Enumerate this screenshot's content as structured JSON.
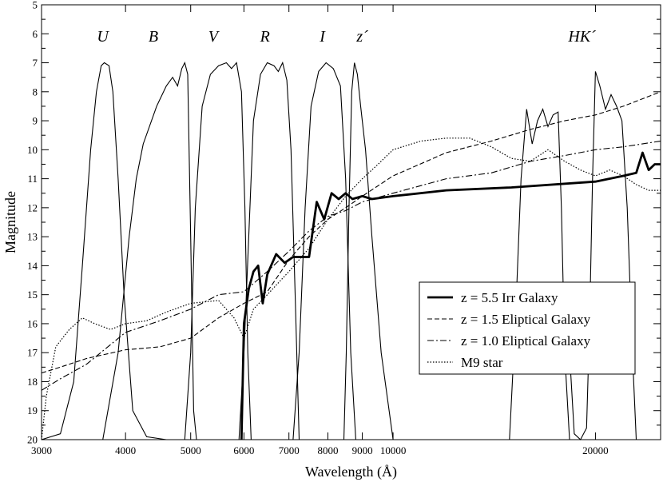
{
  "chart_data": {
    "type": "line",
    "title": "",
    "xlabel": "Wavelength (Å)",
    "ylabel": "Magnitude",
    "x_scale": "log",
    "xlim": [
      3000,
      25000
    ],
    "ylim": [
      20,
      5
    ],
    "y_inverted": true,
    "x_ticks": [
      {
        "value": 3000,
        "label": "3000"
      },
      {
        "value": 4000,
        "label": "4000"
      },
      {
        "value": 5000,
        "label": "5000"
      },
      {
        "value": 6000,
        "label": "6000"
      },
      {
        "value": 7000,
        "label": "7000"
      },
      {
        "value": 8000,
        "label": "8000"
      },
      {
        "value": 9000,
        "label": "9000"
      },
      {
        "value": 10000,
        "label": "10000"
      },
      {
        "value": 20000,
        "label": "20000"
      }
    ],
    "y_ticks": [
      5,
      6,
      7,
      8,
      9,
      10,
      11,
      12,
      13,
      14,
      15,
      16,
      17,
      18,
      19,
      20
    ],
    "filter_bands": [
      {
        "name": "U",
        "label": "U",
        "label_x": 3700,
        "points": [
          [
            3000,
            20
          ],
          [
            3200,
            19.8
          ],
          [
            3350,
            18
          ],
          [
            3450,
            14
          ],
          [
            3550,
            10
          ],
          [
            3620,
            8
          ],
          [
            3680,
            7.1
          ],
          [
            3720,
            7
          ],
          [
            3780,
            7.1
          ],
          [
            3830,
            8
          ],
          [
            3900,
            11
          ],
          [
            3980,
            15
          ],
          [
            4100,
            19
          ],
          [
            4300,
            19.9
          ],
          [
            4600,
            20
          ]
        ]
      },
      {
        "name": "B",
        "label": "B",
        "label_x": 4400,
        "points": [
          [
            3700,
            20
          ],
          [
            3900,
            17
          ],
          [
            4050,
            13
          ],
          [
            4150,
            11
          ],
          [
            4250,
            9.8
          ],
          [
            4450,
            8.5
          ],
          [
            4600,
            7.8
          ],
          [
            4700,
            7.5
          ],
          [
            4780,
            7.8
          ],
          [
            4850,
            7.2
          ],
          [
            4900,
            7
          ],
          [
            4950,
            7.4
          ],
          [
            5000,
            13
          ],
          [
            5050,
            19
          ],
          [
            5100,
            20
          ]
        ]
      },
      {
        "name": "V",
        "label": "V",
        "label_x": 5400,
        "points": [
          [
            4900,
            20
          ],
          [
            5000,
            17
          ],
          [
            5080,
            12
          ],
          [
            5200,
            8.5
          ],
          [
            5350,
            7.4
          ],
          [
            5500,
            7.1
          ],
          [
            5650,
            7.0
          ],
          [
            5750,
            7.2
          ],
          [
            5850,
            7.0
          ],
          [
            5950,
            8
          ],
          [
            6020,
            12
          ],
          [
            6080,
            17
          ],
          [
            6150,
            20
          ]
        ]
      },
      {
        "name": "R",
        "label": "R",
        "label_x": 6450,
        "points": [
          [
            5900,
            20
          ],
          [
            6000,
            17
          ],
          [
            6100,
            13
          ],
          [
            6200,
            9
          ],
          [
            6350,
            7.4
          ],
          [
            6500,
            7.0
          ],
          [
            6650,
            7.1
          ],
          [
            6750,
            7.3
          ],
          [
            6850,
            7.0
          ],
          [
            6950,
            7.6
          ],
          [
            7050,
            10
          ],
          [
            7150,
            15
          ],
          [
            7250,
            20
          ]
        ]
      },
      {
        "name": "I",
        "label": "I",
        "label_x": 7850,
        "points": [
          [
            7100,
            20
          ],
          [
            7250,
            17
          ],
          [
            7400,
            12
          ],
          [
            7550,
            8.5
          ],
          [
            7750,
            7.3
          ],
          [
            7950,
            7.0
          ],
          [
            8150,
            7.2
          ],
          [
            8350,
            7.8
          ],
          [
            8500,
            11
          ],
          [
            8650,
            17
          ],
          [
            8800,
            20
          ]
        ]
      },
      {
        "name": "z'",
        "label": "z´",
        "label_x": 9000,
        "points": [
          [
            8450,
            20
          ],
          [
            8520,
            17
          ],
          [
            8600,
            12
          ],
          [
            8680,
            8
          ],
          [
            8760,
            7.0
          ],
          [
            8850,
            7.4
          ],
          [
            8950,
            8.5
          ],
          [
            9100,
            10
          ],
          [
            9300,
            13
          ],
          [
            9600,
            17
          ],
          [
            10000,
            20
          ]
        ]
      },
      {
        "name": "H",
        "label": "",
        "label_x": 16000,
        "points": [
          [
            14900,
            20
          ],
          [
            15200,
            16
          ],
          [
            15500,
            11
          ],
          [
            15800,
            8.6
          ],
          [
            16100,
            9.8
          ],
          [
            16400,
            9.0
          ],
          [
            16700,
            8.6
          ],
          [
            17000,
            9.2
          ],
          [
            17300,
            8.8
          ],
          [
            17600,
            8.7
          ],
          [
            17800,
            12
          ],
          [
            18000,
            17
          ],
          [
            18300,
            20
          ]
        ]
      },
      {
        "name": "K'",
        "label": "HK´",
        "label_x": 19100,
        "points": [
          [
            18300,
            17
          ],
          [
            18600,
            19.8
          ],
          [
            19000,
            20
          ],
          [
            19400,
            19.6
          ],
          [
            19600,
            16
          ],
          [
            19800,
            11
          ],
          [
            20000,
            7.3
          ],
          [
            20300,
            7.8
          ],
          [
            20700,
            8.6
          ],
          [
            21100,
            8.1
          ],
          [
            21500,
            8.5
          ],
          [
            21900,
            9
          ],
          [
            22300,
            12
          ],
          [
            22700,
            17
          ],
          [
            23000,
            20
          ]
        ]
      }
    ],
    "series": [
      {
        "name": "z = 5.5 Irr Galaxy",
        "style": "thick-solid",
        "points": [
          [
            5950,
            20
          ],
          [
            6000,
            16
          ],
          [
            6100,
            14.8
          ],
          [
            6200,
            14.2
          ],
          [
            6300,
            14.0
          ],
          [
            6400,
            15.3
          ],
          [
            6500,
            14.3
          ],
          [
            6700,
            13.6
          ],
          [
            6900,
            13.9
          ],
          [
            7100,
            13.7
          ],
          [
            7300,
            13.7
          ],
          [
            7500,
            13.7
          ],
          [
            7700,
            11.8
          ],
          [
            7900,
            12.4
          ],
          [
            8100,
            11.5
          ],
          [
            8300,
            11.7
          ],
          [
            8500,
            11.5
          ],
          [
            8700,
            11.7
          ],
          [
            9000,
            11.6
          ],
          [
            9300,
            11.7
          ],
          [
            10000,
            11.6
          ],
          [
            12000,
            11.4
          ],
          [
            15000,
            11.3
          ],
          [
            20000,
            11.1
          ],
          [
            22000,
            10.9
          ],
          [
            23000,
            10.8
          ],
          [
            23500,
            10.1
          ],
          [
            24000,
            10.7
          ],
          [
            24500,
            10.5
          ],
          [
            25000,
            10.5
          ]
        ]
      },
      {
        "name": "z = 1.5 Eliptical Galaxy",
        "style": "dashed",
        "points": [
          [
            3000,
            17.7
          ],
          [
            3200,
            17.5
          ],
          [
            3500,
            17.2
          ],
          [
            4000,
            16.9
          ],
          [
            4500,
            16.8
          ],
          [
            5000,
            16.5
          ],
          [
            5500,
            15.8
          ],
          [
            6000,
            15.3
          ],
          [
            6500,
            14.9
          ],
          [
            7000,
            13.8
          ],
          [
            7500,
            13.0
          ],
          [
            8000,
            12.4
          ],
          [
            8500,
            12.0
          ],
          [
            9000,
            11.6
          ],
          [
            10000,
            10.9
          ],
          [
            12000,
            10.1
          ],
          [
            14000,
            9.7
          ],
          [
            16000,
            9.3
          ],
          [
            18000,
            9.0
          ],
          [
            20000,
            8.8
          ],
          [
            22000,
            8.5
          ],
          [
            25000,
            8.0
          ]
        ]
      },
      {
        "name": "z = 1.0 Eliptical Galaxy",
        "style": "dash-dot",
        "points": [
          [
            3000,
            18.3
          ],
          [
            3200,
            17.9
          ],
          [
            3500,
            17.4
          ],
          [
            4000,
            16.3
          ],
          [
            4500,
            15.9
          ],
          [
            5000,
            15.5
          ],
          [
            5500,
            15.0
          ],
          [
            6000,
            14.9
          ],
          [
            6500,
            14.2
          ],
          [
            7000,
            13.5
          ],
          [
            7500,
            12.8
          ],
          [
            8000,
            12.3
          ],
          [
            8500,
            12.1
          ],
          [
            9000,
            11.8
          ],
          [
            10000,
            11.5
          ],
          [
            12000,
            11.0
          ],
          [
            14000,
            10.8
          ],
          [
            16000,
            10.4
          ],
          [
            18000,
            10.2
          ],
          [
            20000,
            10.0
          ],
          [
            22000,
            9.9
          ],
          [
            25000,
            9.7
          ]
        ]
      },
      {
        "name": "M9 star",
        "style": "dotted",
        "points": [
          [
            3000,
            20
          ],
          [
            3050,
            18.5
          ],
          [
            3150,
            16.8
          ],
          [
            3300,
            16.2
          ],
          [
            3450,
            15.8
          ],
          [
            3600,
            16.0
          ],
          [
            3800,
            16.2
          ],
          [
            4000,
            16.0
          ],
          [
            4300,
            15.9
          ],
          [
            4600,
            15.6
          ],
          [
            5000,
            15.3
          ],
          [
            5500,
            15.2
          ],
          [
            5800,
            15.8
          ],
          [
            6000,
            16.5
          ],
          [
            6200,
            15.5
          ],
          [
            6500,
            15.0
          ],
          [
            7000,
            14.2
          ],
          [
            7500,
            13.4
          ],
          [
            8000,
            12.4
          ],
          [
            8500,
            11.6
          ],
          [
            9000,
            11.0
          ],
          [
            9500,
            10.5
          ],
          [
            10000,
            10.0
          ],
          [
            11000,
            9.7
          ],
          [
            12000,
            9.6
          ],
          [
            13000,
            9.6
          ],
          [
            14000,
            9.9
          ],
          [
            15000,
            10.3
          ],
          [
            16000,
            10.4
          ],
          [
            17000,
            10.0
          ],
          [
            18000,
            10.4
          ],
          [
            19000,
            10.7
          ],
          [
            20000,
            10.9
          ],
          [
            21000,
            10.7
          ],
          [
            22000,
            10.9
          ],
          [
            23000,
            11.2
          ],
          [
            24000,
            11.4
          ],
          [
            25000,
            11.4
          ]
        ]
      }
    ],
    "legend": {
      "position": "lower-right",
      "entries": [
        {
          "label": "z = 5.5 Irr Galaxy",
          "style": "thick-solid"
        },
        {
          "label": "z = 1.5 Eliptical Galaxy",
          "style": "dashed"
        },
        {
          "label": "z = 1.0 Eliptical Galaxy",
          "style": "dash-dot"
        },
        {
          "label": "M9 star",
          "style": "dotted"
        }
      ]
    }
  }
}
